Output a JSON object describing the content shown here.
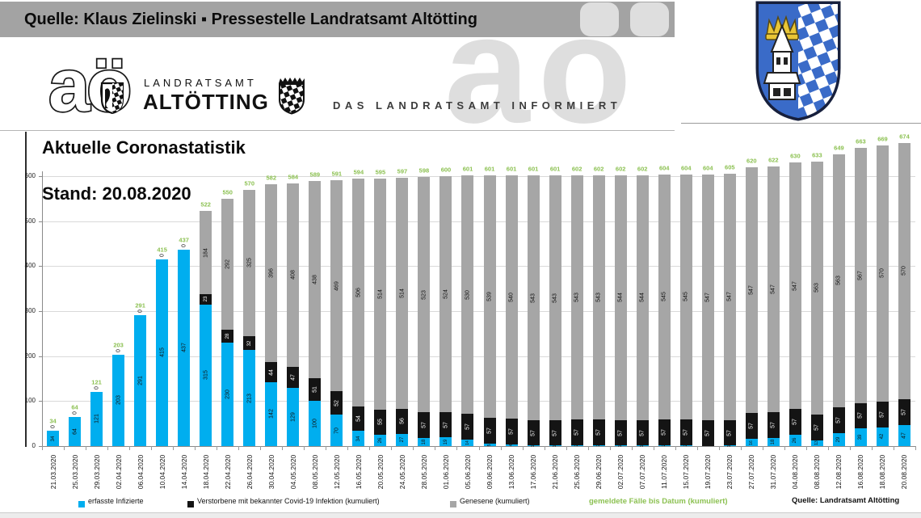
{
  "header": {
    "source_line": "Quelle: Klaus Zielinski ▪ Pressestelle Landratsamt Altötting",
    "watermark": "aö",
    "tagline": "DAS LANDRATSAMT INFORMIERT"
  },
  "logo": {
    "monogram": "aö",
    "org_line1": "LANDRATSAMT",
    "org_line2": "ALTÖTTING"
  },
  "chart_data": {
    "type": "bar",
    "stacked": true,
    "title": "Aktuelle Coronastatistik",
    "subtitle": "Stand: 20.08.2020",
    "source": "Quelle: Landratsamt Altötting",
    "ylim": [
      0,
      600
    ],
    "ytick_step": 100,
    "grid": "horizontal",
    "legend_position": "bottom",
    "categories": [
      "21.03.2020",
      "25.03.2020",
      "29.03.2020",
      "02.04.2020",
      "06.04.2020",
      "10.04.2020",
      "14.04.2020",
      "18.04.2020",
      "22.04.2020",
      "26.04.2020",
      "30.04.2020",
      "04.05.2020",
      "08.05.2020",
      "12.05.2020",
      "16.05.2020",
      "20.05.2020",
      "24.05.2020",
      "28.05.2020",
      "01.06.2020",
      "05.06.2020",
      "09.06.2020",
      "13.06.2020",
      "17.06.2020",
      "21.06.2020",
      "25.06.2020",
      "29.06.2020",
      "02.07.2020",
      "07.07.2020",
      "11.07.2020",
      "15.07.2020",
      "19.07.2020",
      "23.07.2020",
      "27.07.2020",
      "31.07.2020",
      "04.08.2020",
      "08.08.2020",
      "12.08.2020",
      "16.08.2020",
      "18.08.2020",
      "20.08.2020"
    ],
    "series": [
      {
        "name": "erfasste Infizierte",
        "color": "#00aeef",
        "values": [
          34,
          64,
          121,
          203,
          291,
          415,
          437,
          315,
          230,
          213,
          142,
          129,
          100,
          70,
          34,
          26,
          27,
          18,
          19,
          14,
          5,
          4,
          1,
          1,
          2,
          2,
          1,
          1,
          2,
          2,
          0,
          1,
          16,
          18,
          26,
          13,
          29,
          39,
          42,
          47
        ]
      },
      {
        "name": "Verstorbene mit bekannter Covid-19 Infektion (kumuliert)",
        "color": "#141414",
        "values": [
          0,
          0,
          0,
          0,
          0,
          0,
          0,
          23,
          28,
          32,
          44,
          47,
          51,
          52,
          54,
          55,
          56,
          57,
          57,
          57,
          57,
          57,
          57,
          57,
          57,
          57,
          57,
          57,
          57,
          57,
          57,
          57,
          57,
          57,
          57,
          57,
          57,
          57,
          57,
          57
        ]
      },
      {
        "name": "Genesene (kumuliert)",
        "color": "#a6a6a6",
        "values": [
          0,
          0,
          0,
          0,
          0,
          0,
          0,
          184,
          292,
          325,
          396,
          408,
          438,
          469,
          506,
          514,
          514,
          523,
          524,
          530,
          539,
          540,
          543,
          543,
          543,
          543,
          544,
          544,
          545,
          545,
          547,
          547,
          547,
          547,
          547,
          563,
          563,
          567,
          570,
          570
        ]
      }
    ],
    "totals": {
      "name": "gemeldete Fälle bis Datum (kumuliert)",
      "color": "#8cc152",
      "values": [
        34,
        64,
        121,
        203,
        291,
        415,
        437,
        522,
        550,
        570,
        582,
        584,
        589,
        591,
        594,
        595,
        597,
        598,
        600,
        601,
        601,
        601,
        601,
        601,
        602,
        602,
        602,
        602,
        604,
        604,
        604,
        605,
        620,
        622,
        630,
        633,
        649,
        663,
        669,
        674
      ]
    }
  }
}
